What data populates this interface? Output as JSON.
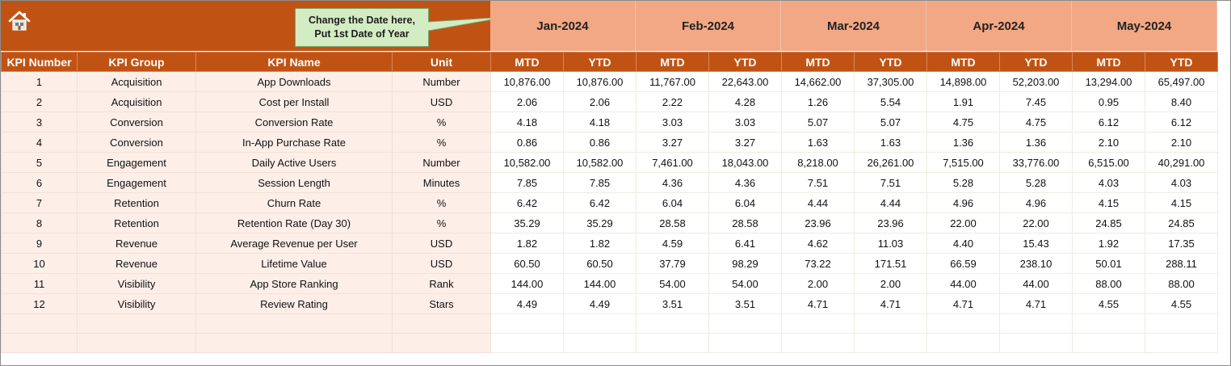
{
  "callout": {
    "line1": "Change the Date here,",
    "line2": "Put 1st Date of Year"
  },
  "months": [
    "Jan-2024",
    "Feb-2024",
    "Mar-2024",
    "Apr-2024",
    "May-2024"
  ],
  "columns": {
    "kpi_number": "KPI Number",
    "kpi_group": "KPI Group",
    "kpi_name": "KPI Name",
    "unit": "Unit",
    "mtd": "MTD",
    "ytd": "YTD"
  },
  "rows": [
    {
      "n": "1",
      "group": "Acquisition",
      "name": "App Downloads",
      "unit": "Number",
      "vals": [
        "10,876.00",
        "10,876.00",
        "11,767.00",
        "22,643.00",
        "14,662.00",
        "37,305.00",
        "14,898.00",
        "52,203.00",
        "13,294.00",
        "65,497.00"
      ]
    },
    {
      "n": "2",
      "group": "Acquisition",
      "name": "Cost per Install",
      "unit": "USD",
      "vals": [
        "2.06",
        "2.06",
        "2.22",
        "4.28",
        "1.26",
        "5.54",
        "1.91",
        "7.45",
        "0.95",
        "8.40"
      ]
    },
    {
      "n": "3",
      "group": "Conversion",
      "name": "Conversion Rate",
      "unit": "%",
      "vals": [
        "4.18",
        "4.18",
        "3.03",
        "3.03",
        "5.07",
        "5.07",
        "4.75",
        "4.75",
        "6.12",
        "6.12"
      ]
    },
    {
      "n": "4",
      "group": "Conversion",
      "name": "In-App Purchase Rate",
      "unit": "%",
      "vals": [
        "0.86",
        "0.86",
        "3.27",
        "3.27",
        "1.63",
        "1.63",
        "1.36",
        "1.36",
        "2.10",
        "2.10"
      ]
    },
    {
      "n": "5",
      "group": "Engagement",
      "name": "Daily Active Users",
      "unit": "Number",
      "vals": [
        "10,582.00",
        "10,582.00",
        "7,461.00",
        "18,043.00",
        "8,218.00",
        "26,261.00",
        "7,515.00",
        "33,776.00",
        "6,515.00",
        "40,291.00"
      ]
    },
    {
      "n": "6",
      "group": "Engagement",
      "name": "Session Length",
      "unit": "Minutes",
      "vals": [
        "7.85",
        "7.85",
        "4.36",
        "4.36",
        "7.51",
        "7.51",
        "5.28",
        "5.28",
        "4.03",
        "4.03"
      ]
    },
    {
      "n": "7",
      "group": "Retention",
      "name": "Churn Rate",
      "unit": "%",
      "vals": [
        "6.42",
        "6.42",
        "6.04",
        "6.04",
        "4.44",
        "4.44",
        "4.96",
        "4.96",
        "4.15",
        "4.15"
      ]
    },
    {
      "n": "8",
      "group": "Retention",
      "name": "Retention Rate (Day 30)",
      "unit": "%",
      "vals": [
        "35.29",
        "35.29",
        "28.58",
        "28.58",
        "23.96",
        "23.96",
        "22.00",
        "22.00",
        "24.85",
        "24.85"
      ]
    },
    {
      "n": "9",
      "group": "Revenue",
      "name": "Average Revenue per User",
      "unit": "USD",
      "vals": [
        "1.82",
        "1.82",
        "4.59",
        "6.41",
        "4.62",
        "11.03",
        "4.40",
        "15.43",
        "1.92",
        "17.35"
      ]
    },
    {
      "n": "10",
      "group": "Revenue",
      "name": "Lifetime Value",
      "unit": "USD",
      "vals": [
        "60.50",
        "60.50",
        "37.79",
        "98.29",
        "73.22",
        "171.51",
        "66.59",
        "238.10",
        "50.01",
        "288.11"
      ]
    },
    {
      "n": "11",
      "group": "Visibility",
      "name": "App Store Ranking",
      "unit": "Rank",
      "vals": [
        "144.00",
        "144.00",
        "54.00",
        "54.00",
        "2.00",
        "2.00",
        "44.00",
        "44.00",
        "88.00",
        "88.00"
      ]
    },
    {
      "n": "12",
      "group": "Visibility",
      "name": "Review Rating",
      "unit": "Stars",
      "vals": [
        "4.49",
        "4.49",
        "3.51",
        "3.51",
        "4.71",
        "4.71",
        "4.71",
        "4.71",
        "4.55",
        "4.55"
      ]
    }
  ],
  "icons": {
    "home": "home-icon"
  },
  "colors": {
    "header": "#c05314",
    "month_band": "#f2a884",
    "left_cells": "#fdeee8",
    "callout_bg": "#d3ecc3"
  }
}
